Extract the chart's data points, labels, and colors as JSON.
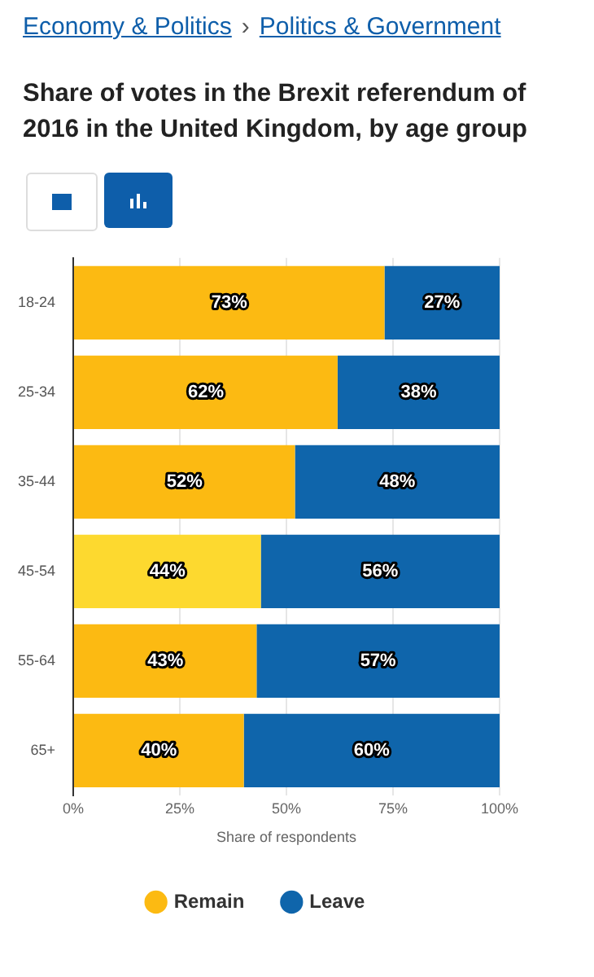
{
  "chart_data": {
    "type": "bar",
    "orientation": "horizontal",
    "stacked": true,
    "title": "Share of votes in the Brexit referendum of 2016 in the United Kingdom, by age group",
    "annotations": [
      "Economy & Politics",
      "›",
      "Politics & Government"
    ],
    "categories": [
      "18-24",
      "25-34",
      "35-44",
      "45-54",
      "55-64",
      "65+"
    ],
    "series": [
      {
        "name": "Remain",
        "color": "#fcba12",
        "colors": [
          "#fcba12",
          "#fcba12",
          "#fcba12",
          "#fdd92f",
          "#fcba12",
          "#fcba12"
        ],
        "values": [
          73,
          62,
          52,
          44,
          43,
          40
        ],
        "value_labels": [
          "73%",
          "62%",
          "52%",
          "44%",
          "43%",
          "40%"
        ]
      },
      {
        "name": "Leave",
        "color": "#0f65ab",
        "values": [
          27,
          38,
          48,
          56,
          57,
          60
        ],
        "value_labels": [
          "27%",
          "38%",
          "48%",
          "56%",
          "57%",
          "60%"
        ]
      }
    ],
    "xlim": [
      0,
      100
    ],
    "xticks": [
      {
        "value": 0,
        "label": "0%"
      },
      {
        "value": 25,
        "label": "25%"
      },
      {
        "value": 50,
        "label": "50%"
      },
      {
        "value": 75,
        "label": "75%"
      },
      {
        "value": 100,
        "label": "100%"
      }
    ],
    "xlabel": "Share of respondents",
    "grid": "x",
    "legend": "bottom"
  }
}
